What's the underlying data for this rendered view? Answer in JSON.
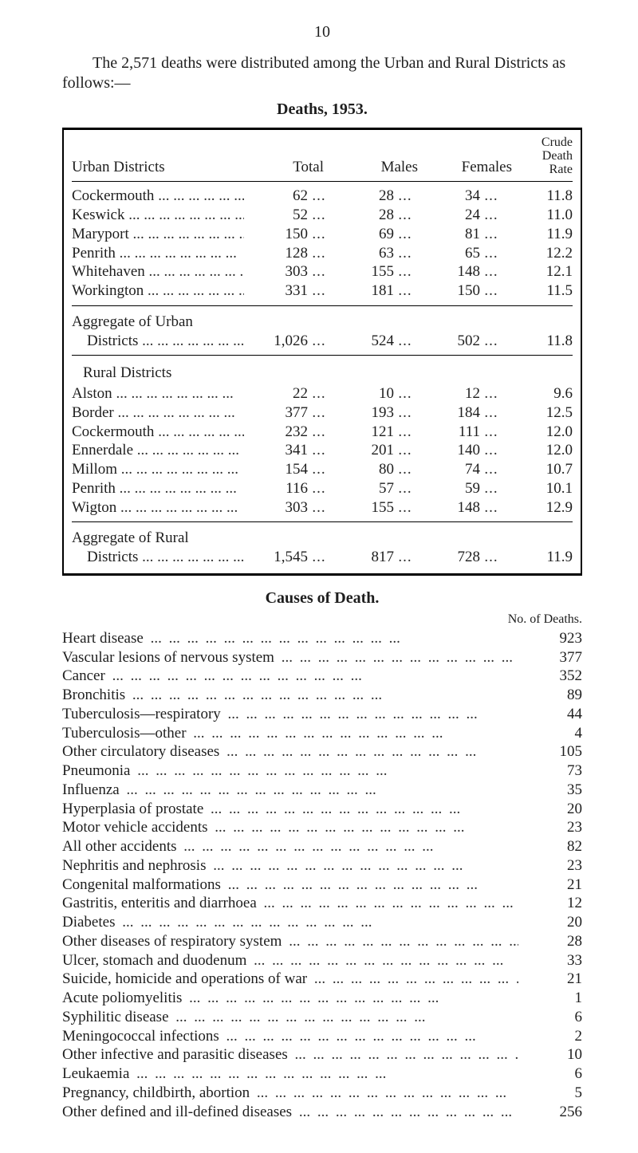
{
  "page_number": "10",
  "intro_text": "The 2,571 deaths were distributed among the Urban and Rural Districts as follows:—",
  "deaths_header": "Deaths, 1953.",
  "col_headers": {
    "c0": "Urban Districts",
    "c1": "Total",
    "c2": "Males",
    "c3": "Females",
    "c4a": "Crude",
    "c4b": "Death",
    "c4c": "Rate"
  },
  "urban": [
    {
      "name": "Cockermouth",
      "total": "62",
      "males": "28",
      "females": "34",
      "rate": "11.8"
    },
    {
      "name": "Keswick",
      "total": "52",
      "males": "28",
      "females": "24",
      "rate": "11.0"
    },
    {
      "name": "Maryport",
      "total": "150",
      "males": "69",
      "females": "81",
      "rate": "11.9"
    },
    {
      "name": "Penrith",
      "total": "128",
      "males": "63",
      "females": "65",
      "rate": "12.2"
    },
    {
      "name": "Whitehaven",
      "total": "303",
      "males": "155",
      "females": "148",
      "rate": "12.1"
    },
    {
      "name": "Workington",
      "total": "331",
      "males": "181",
      "females": "150",
      "rate": "11.5"
    }
  ],
  "agg_urban_label1": "Aggregate of Urban",
  "agg_urban_label2": "Districts",
  "agg_urban": {
    "total": "1,026",
    "males": "524",
    "females": "502",
    "rate": "11.8"
  },
  "rural_header": "Rural Districts",
  "rural": [
    {
      "name": "Alston",
      "total": "22",
      "males": "10",
      "females": "12",
      "rate": "9.6"
    },
    {
      "name": "Border",
      "total": "377",
      "males": "193",
      "females": "184",
      "rate": "12.5"
    },
    {
      "name": "Cockermouth",
      "total": "232",
      "males": "121",
      "females": "111",
      "rate": "12.0"
    },
    {
      "name": "Ennerdale",
      "total": "341",
      "males": "201",
      "females": "140",
      "rate": "12.0"
    },
    {
      "name": "Millom",
      "total": "154",
      "males": "80",
      "females": "74",
      "rate": "10.7"
    },
    {
      "name": "Penrith",
      "total": "116",
      "males": "57",
      "females": "59",
      "rate": "10.1"
    },
    {
      "name": "Wigton",
      "total": "303",
      "males": "155",
      "females": "148",
      "rate": "12.9"
    }
  ],
  "agg_rural_label1": "Aggregate of Rural",
  "agg_rural_label2": "Districts",
  "agg_rural": {
    "total": "1,545",
    "males": "817",
    "females": "728",
    "rate": "11.9"
  },
  "causes_header": "Causes of Death.",
  "causes_col_label": "No. of Deaths.",
  "causes": [
    {
      "name": "Heart disease",
      "value": "923"
    },
    {
      "name": "Vascular lesions of nervous system",
      "value": "377"
    },
    {
      "name": "Cancer",
      "value": "352"
    },
    {
      "name": "Bronchitis",
      "value": "89"
    },
    {
      "name": "Tuberculosis—respiratory",
      "value": "44"
    },
    {
      "name": "Tuberculosis—other",
      "value": "4"
    },
    {
      "name": "Other circulatory diseases",
      "value": "105"
    },
    {
      "name": "Pneumonia",
      "value": "73"
    },
    {
      "name": "Influenza",
      "value": "35"
    },
    {
      "name": "Hyperplasia of prostate",
      "value": "20"
    },
    {
      "name": "Motor vehicle accidents",
      "value": "23"
    },
    {
      "name": "All other accidents",
      "value": "82"
    },
    {
      "name": "Nephritis and nephrosis",
      "value": "23"
    },
    {
      "name": "Congenital malformations",
      "value": "21"
    },
    {
      "name": "Gastritis, enteritis and diarrhoea",
      "value": "12"
    },
    {
      "name": "Diabetes",
      "value": "20"
    },
    {
      "name": "Other diseases of respiratory system",
      "value": "28"
    },
    {
      "name": "Ulcer, stomach and duodenum",
      "value": "33"
    },
    {
      "name": "Suicide, homicide and operations of war",
      "value": "21"
    },
    {
      "name": "Acute poliomyelitis",
      "value": "1"
    },
    {
      "name": "Syphilitic disease",
      "value": "6"
    },
    {
      "name": "Meningococcal infections",
      "value": "2"
    },
    {
      "name": "Other infective and parasitic diseases",
      "value": "10"
    },
    {
      "name": "Leukaemia",
      "value": "6"
    },
    {
      "name": "Pregnancy, childbirth, abortion",
      "value": "5"
    },
    {
      "name": "Other defined and ill-defined diseases",
      "value": "256"
    }
  ]
}
